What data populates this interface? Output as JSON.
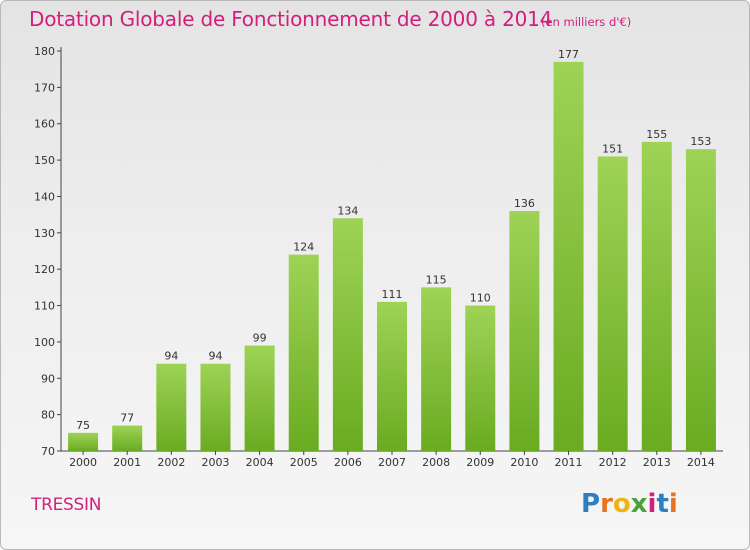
{
  "chart_data": {
    "type": "bar",
    "title": "Dotation Globale de Fonctionnement de 2000 à 2014",
    "subtitle": "(en milliers d'€)",
    "xlabel": "",
    "ylabel": "",
    "categories": [
      "2000",
      "2001",
      "2002",
      "2003",
      "2004",
      "2005",
      "2006",
      "2007",
      "2008",
      "2009",
      "2010",
      "2011",
      "2012",
      "2013",
      "2014"
    ],
    "values": [
      75,
      77,
      94,
      94,
      99,
      124,
      134,
      111,
      115,
      110,
      136,
      177,
      151,
      155,
      153
    ],
    "ylim": [
      70,
      180
    ],
    "yticks": [
      70,
      80,
      90,
      100,
      110,
      120,
      130,
      140,
      150,
      160,
      170,
      180
    ],
    "grid": false,
    "bar_color": "#7fc13a"
  },
  "commune": "TRESSIN",
  "logo": {
    "text": "Proxiti",
    "letter_colors": [
      "#2d7fc1",
      "#e8731e",
      "#f0b312",
      "#4aa33a",
      "#d21f7c",
      "#2d7fc1",
      "#e8731e"
    ]
  }
}
